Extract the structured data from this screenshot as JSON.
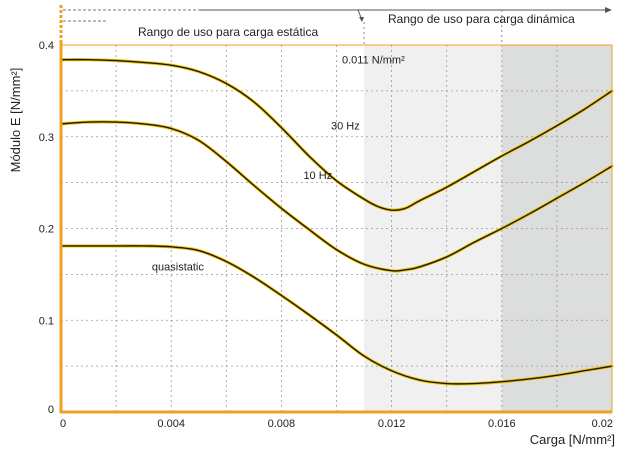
{
  "chart_data": {
    "type": "line",
    "ylabel": "Módulo E [N/mm²]",
    "xlabel": "Carga  [N/mm²]",
    "xlim": [
      0,
      0.02
    ],
    "ylim": [
      0,
      0.4
    ],
    "x_ticks": [
      {
        "value": 0,
        "label": "0"
      },
      {
        "value": 0.004,
        "label": "0.004"
      },
      {
        "value": 0.008,
        "label": "0.008"
      },
      {
        "value": 0.012,
        "label": "0.012"
      },
      {
        "value": 0.016,
        "label": "0.016"
      },
      {
        "value": 0.02,
        "label": "0.02"
      }
    ],
    "y_ticks": [
      {
        "value": 0,
        "label": "0"
      },
      {
        "value": 0.1,
        "label": "0.1"
      },
      {
        "value": 0.2,
        "label": "0.2"
      },
      {
        "value": 0.3,
        "label": "0.3"
      },
      {
        "value": 0.4,
        "label": "0.4"
      }
    ],
    "grid": true,
    "regions": [
      {
        "from": 0.011,
        "to": 0.016,
        "color": "#eff0ef"
      },
      {
        "from": 0.016,
        "to": 0.02,
        "color": "#dcdddd"
      }
    ],
    "series": [
      {
        "name": "30 Hz",
        "label_at": [
          0.0098,
          0.308
        ],
        "x": [
          0,
          0.001,
          0.002,
          0.003,
          0.004,
          0.005,
          0.006,
          0.007,
          0.008,
          0.009,
          0.01,
          0.011,
          0.0115,
          0.012,
          0.0125,
          0.013,
          0.014,
          0.015,
          0.016,
          0.017,
          0.018,
          0.019,
          0.02
        ],
        "y": [
          0.384,
          0.384,
          0.383,
          0.381,
          0.378,
          0.371,
          0.358,
          0.338,
          0.31,
          0.279,
          0.252,
          0.232,
          0.224,
          0.22,
          0.222,
          0.23,
          0.245,
          0.262,
          0.279,
          0.295,
          0.312,
          0.33,
          0.35
        ]
      },
      {
        "name": "10 Hz",
        "label_at": [
          0.0088,
          0.254
        ],
        "x": [
          0,
          0.001,
          0.002,
          0.003,
          0.004,
          0.005,
          0.006,
          0.007,
          0.008,
          0.009,
          0.01,
          0.011,
          0.012,
          0.0125,
          0.013,
          0.014,
          0.015,
          0.016,
          0.017,
          0.018,
          0.019,
          0.02
        ],
        "y": [
          0.314,
          0.316,
          0.316,
          0.314,
          0.309,
          0.296,
          0.273,
          0.247,
          0.222,
          0.199,
          0.177,
          0.161,
          0.154,
          0.155,
          0.158,
          0.169,
          0.185,
          0.2,
          0.216,
          0.233,
          0.25,
          0.268
        ]
      },
      {
        "name": "quasistatic",
        "label_at": [
          0.0033,
          0.154
        ],
        "x": [
          0,
          0.001,
          0.002,
          0.003,
          0.004,
          0.005,
          0.006,
          0.007,
          0.008,
          0.009,
          0.01,
          0.011,
          0.012,
          0.013,
          0.014,
          0.015,
          0.016,
          0.017,
          0.018,
          0.019,
          0.02
        ],
        "y": [
          0.181,
          0.181,
          0.181,
          0.181,
          0.18,
          0.176,
          0.164,
          0.147,
          0.127,
          0.106,
          0.084,
          0.061,
          0.045,
          0.035,
          0.031,
          0.031,
          0.033,
          0.036,
          0.04,
          0.045,
          0.05
        ]
      }
    ],
    "annotations": [
      {
        "text": "0.011 N/mm²",
        "at": [
          0.0102,
          0.38
        ]
      }
    ],
    "range_labels": {
      "static": "Rango de uso para carga estática",
      "dynamic": "Rango de uso para carga dinámica"
    }
  }
}
